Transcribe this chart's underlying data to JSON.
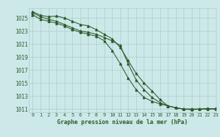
{
  "title": "Graphe pression niveau de la mer (hPa)",
  "bg_color": "#cce8e8",
  "grid_color": "#aacccc",
  "line_color": "#2d5a2d",
  "xlim": [
    -0.5,
    23
  ],
  "ylim": [
    1010.5,
    1026.5
  ],
  "yticks": [
    1011,
    1013,
    1015,
    1017,
    1019,
    1021,
    1023,
    1025
  ],
  "xticks": [
    0,
    1,
    2,
    3,
    4,
    5,
    6,
    7,
    8,
    9,
    10,
    11,
    12,
    13,
    14,
    15,
    16,
    17,
    18,
    19,
    20,
    21,
    22,
    23
  ],
  "series": [
    [
      1026.0,
      1025.4,
      1025.2,
      1025.3,
      1025.0,
      1024.5,
      1024.0,
      1023.8,
      1023.2,
      1022.5,
      1021.8,
      1020.5,
      1018.5,
      1016.5,
      1015.0,
      1013.8,
      1012.5,
      1011.5,
      1011.2,
      1011.0,
      1011.0,
      1011.0,
      1011.1,
      1011.0
    ],
    [
      1025.8,
      1025.2,
      1024.8,
      1024.5,
      1024.0,
      1023.5,
      1023.0,
      1022.8,
      1022.5,
      1022.0,
      1021.5,
      1020.8,
      1018.0,
      1015.5,
      1014.0,
      1012.8,
      1012.0,
      1011.5,
      1011.2,
      1011.0,
      1011.0,
      1011.0,
      1011.0,
      1011.1
    ],
    [
      1025.5,
      1024.8,
      1024.5,
      1024.2,
      1023.8,
      1023.2,
      1022.8,
      1022.5,
      1022.2,
      1021.5,
      1020.0,
      1018.0,
      1015.8,
      1014.0,
      1012.8,
      1012.2,
      1011.8,
      1011.5,
      1011.2,
      1011.0,
      1010.9,
      1011.0,
      1011.0,
      1011.0
    ]
  ]
}
